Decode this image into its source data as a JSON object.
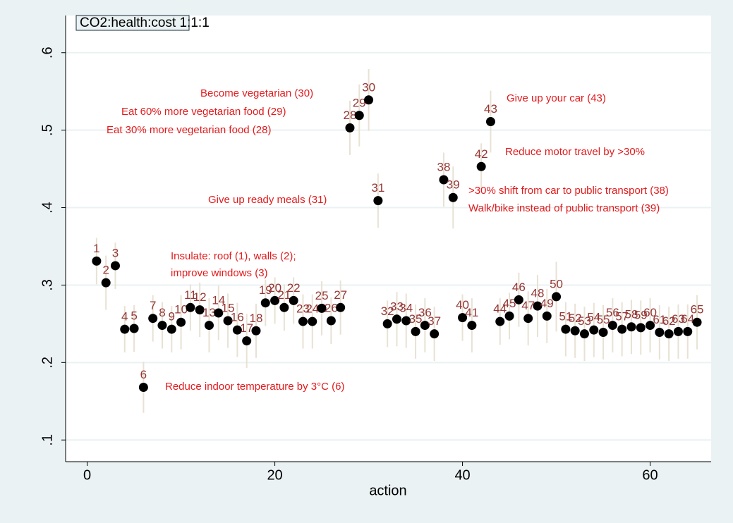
{
  "chart_data": {
    "type": "scatter",
    "title": "CO2:health:cost 1:1:1",
    "x_label": "action",
    "x": [
      1,
      2,
      3,
      4,
      5,
      6,
      7,
      8,
      9,
      10,
      11,
      12,
      13,
      14,
      15,
      16,
      17,
      18,
      19,
      20,
      21,
      22,
      23,
      24,
      25,
      26,
      27,
      28,
      29,
      30,
      31,
      32,
      33,
      34,
      35,
      36,
      37,
      38,
      39,
      40,
      41,
      42,
      43,
      44,
      45,
      46,
      47,
      48,
      49,
      50,
      51,
      52,
      53,
      54,
      55,
      56,
      57,
      58,
      59,
      60,
      61,
      62,
      63,
      64,
      65
    ],
    "series": [
      {
        "color": "#000000",
        "error_color": "#e8e2d4",
        "label_color": "#953735",
        "values": [
          0.331,
          0.303,
          0.325,
          0.243,
          0.244,
          0.168,
          0.257,
          0.248,
          0.243,
          0.252,
          0.271,
          0.268,
          0.248,
          0.264,
          0.254,
          0.242,
          0.228,
          0.241,
          0.277,
          0.28,
          0.271,
          0.28,
          0.253,
          0.253,
          0.27,
          0.254,
          0.271,
          0.503,
          0.519,
          0.539,
          0.409,
          0.25,
          0.256,
          0.254,
          0.24,
          0.248,
          0.237,
          0.436,
          0.413,
          0.258,
          0.248,
          0.453,
          0.511,
          0.253,
          0.26,
          0.281,
          0.257,
          0.273,
          0.26,
          0.285,
          0.243,
          0.241,
          0.237,
          0.242,
          0.239,
          0.248,
          0.243,
          0.246,
          0.245,
          0.248,
          0.239,
          0.237,
          0.24,
          0.24,
          0.252
        ],
        "errors": [
          0.03,
          0.035,
          0.03,
          0.03,
          0.03,
          0.033,
          0.03,
          0.03,
          0.03,
          0.035,
          0.03,
          0.035,
          0.035,
          0.035,
          0.035,
          0.035,
          0.035,
          0.035,
          0.03,
          0.03,
          0.03,
          0.03,
          0.035,
          0.035,
          0.035,
          0.03,
          0.035,
          0.035,
          0.04,
          0.04,
          0.035,
          0.03,
          0.035,
          0.035,
          0.035,
          0.035,
          0.035,
          0.035,
          0.04,
          0.03,
          0.035,
          0.03,
          0.04,
          0.03,
          0.03,
          0.035,
          0.035,
          0.04,
          0.035,
          0.045,
          0.035,
          0.035,
          0.035,
          0.035,
          0.035,
          0.035,
          0.035,
          0.035,
          0.035,
          0.035,
          0.035,
          0.035,
          0.035,
          0.035,
          0.035
        ]
      }
    ],
    "annotations": [
      "Become vegetarian (30)",
      "Eat 60% more vegetarian food (29)",
      "Eat 30% more vegetarian food (28)",
      "Give up ready meals (31)",
      "Give up your car (43)",
      "Reduce motor travel by >30%",
      ">30% shift from car to public transport (38)",
      "Walk/bike instead of public transport (39)",
      "Insulate: roof (1), walls (2);",
      "improve windows (3)",
      "Reduce indoor temperature by 3°C (6)"
    ],
    "annotation_color": "#e31a1c",
    "xlim": [
      -2.3,
      66.5
    ],
    "ylim": [
      0.072,
      0.648
    ],
    "xticks": [
      0,
      20,
      40,
      60
    ],
    "yticks": [
      {
        "value": 0.1,
        "label": ".1"
      },
      {
        "value": 0.2,
        "label": ".2"
      },
      {
        "value": 0.3,
        "label": ".3"
      },
      {
        "value": 0.4,
        "label": ".4"
      },
      {
        "value": 0.5,
        "label": ".5"
      },
      {
        "value": 0.6,
        "label": ".6"
      }
    ],
    "grid": true
  }
}
